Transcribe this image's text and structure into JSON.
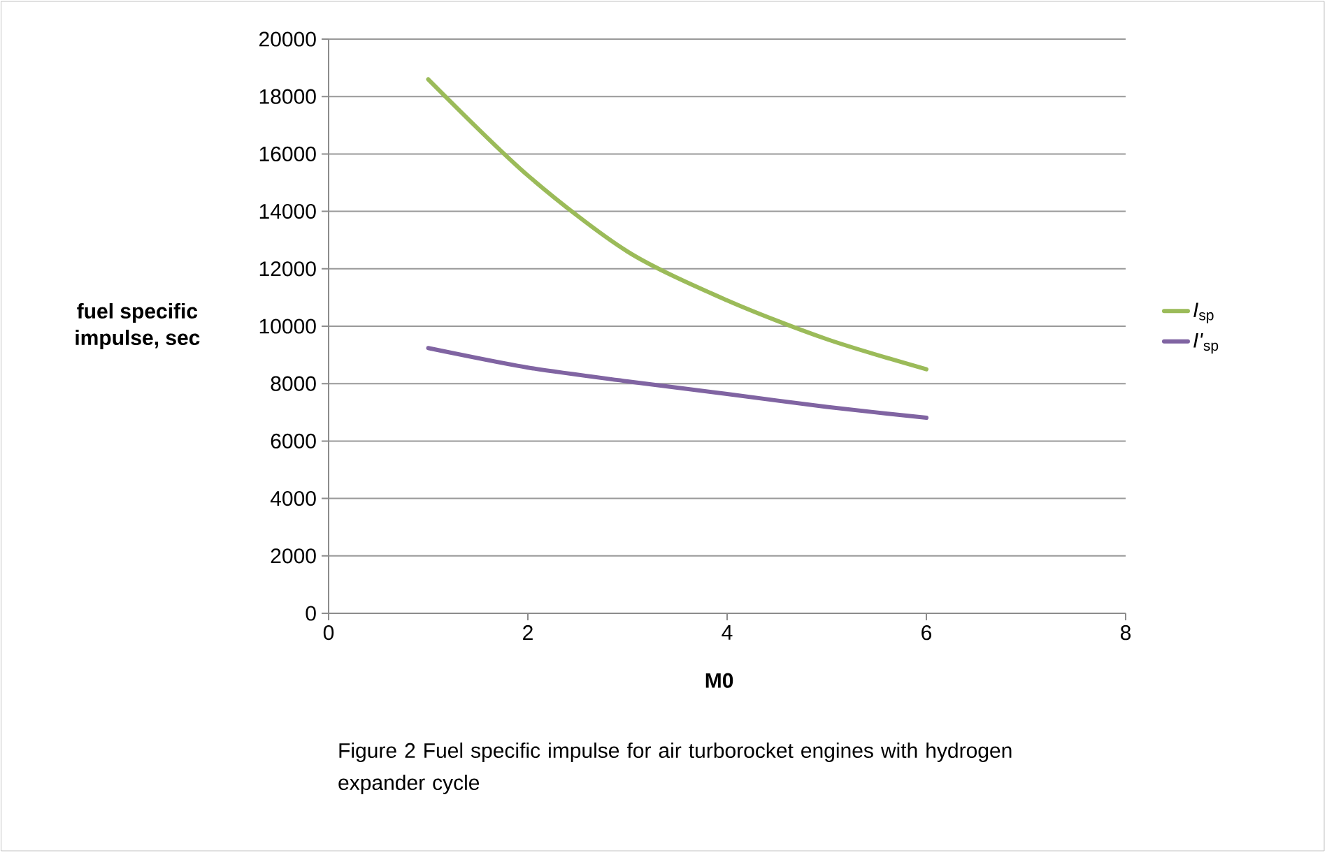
{
  "chart_data": {
    "type": "line",
    "xlabel": "M0",
    "ylabel": "fuel specific impulse, sec",
    "x": [
      1,
      2,
      3,
      4,
      5,
      6
    ],
    "series": [
      {
        "name": "*I*$_{sp}$",
        "color": "#9bbb59",
        "values": [
          18600,
          15250,
          12600,
          10900,
          9550,
          8500
        ]
      },
      {
        "name": "*I'*$_{sp}$",
        "color": "#8064a2",
        "values": [
          9240,
          8560,
          8080,
          7640,
          7190,
          6810
        ]
      }
    ],
    "xlim": [
      0,
      8
    ],
    "xticks": [
      0,
      2,
      4,
      6,
      8
    ],
    "ylim": [
      0,
      20000
    ],
    "yticks": [
      0,
      2000,
      4000,
      6000,
      8000,
      10000,
      12000,
      14000,
      16000,
      18000,
      20000
    ],
    "grid": "y",
    "legend": "right",
    "marker": "none",
    "line_style": "solid",
    "annotations": [
      "Figure 2 Fuel specific impulse for air turborocket engines with hydrogen expander cycle"
    ]
  }
}
